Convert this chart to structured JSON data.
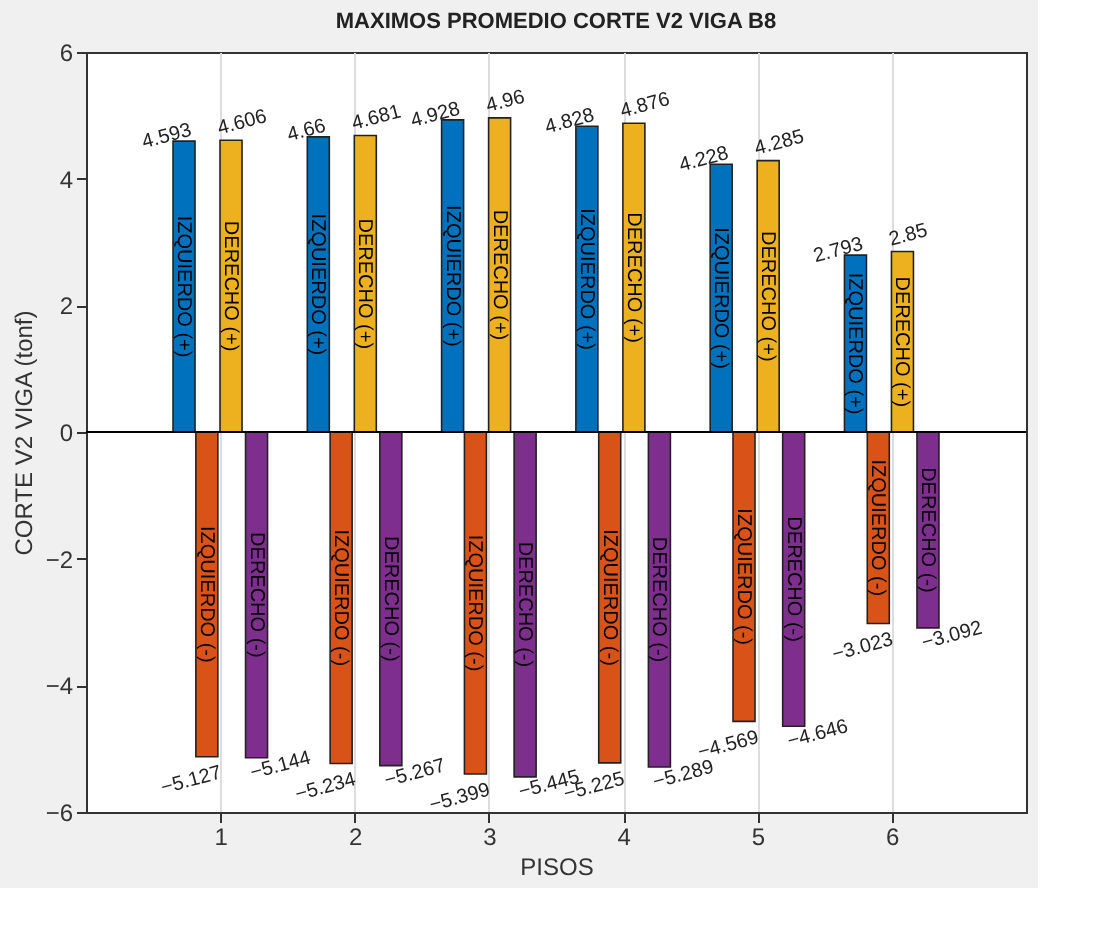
{
  "chart_data": {
    "type": "bar",
    "title": "MAXIMOS PROMEDIO  CORTE V2 VIGA B8",
    "xlabel": "PISOS",
    "ylabel": "CORTE V2 VIGA (tonf)",
    "x": [
      1,
      2,
      3,
      4,
      5,
      6
    ],
    "series": [
      {
        "name": "IZQUIERDO (+)",
        "color": "#0072bd",
        "values": [
          4.593,
          4.66,
          4.928,
          4.828,
          4.228,
          2.793
        ]
      },
      {
        "name": "DERECHO (+)",
        "color": "#edb120",
        "values": [
          4.606,
          4.681,
          4.96,
          4.876,
          4.285,
          2.85
        ]
      },
      {
        "name": "IZQUIERDO (-)",
        "color": "#d95319",
        "values": [
          -5.127,
          -5.234,
          -5.399,
          -5.225,
          -4.569,
          -3.023
        ]
      },
      {
        "name": "DERECHO (-)",
        "color": "#7e2f8e",
        "values": [
          -5.144,
          -5.267,
          -5.445,
          -5.289,
          -4.646,
          -3.092
        ]
      }
    ],
    "xlim": [
      0,
      7
    ],
    "xticks": [
      1,
      2,
      3,
      4,
      5,
      6
    ],
    "ylim": [
      -6,
      6
    ],
    "yticks": [
      -6,
      -4,
      -2,
      0,
      2,
      4,
      6
    ],
    "ref_lines": [
      {
        "axis": "y",
        "value": 0,
        "color": "#000000"
      }
    ],
    "grid": "x",
    "legend": false,
    "data_labels": true
  }
}
